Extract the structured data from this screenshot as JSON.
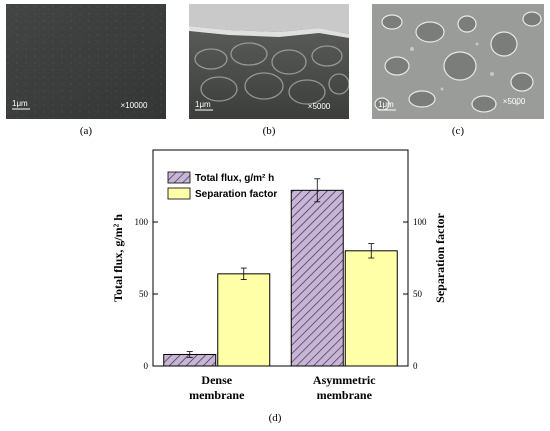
{
  "panels": [
    {
      "caption": "(a)",
      "scale_label": "1μm",
      "magnification": "×10000",
      "description": "dense membrane surface"
    },
    {
      "caption": "(b)",
      "scale_label": "1μm",
      "magnification": "×5000",
      "description": "asymmetric membrane cross-section"
    },
    {
      "caption": "(c)",
      "scale_label": "1μm",
      "magnification": "×5000",
      "description": "porous membrane surface"
    }
  ],
  "chart_caption": "(d)",
  "chart_data": {
    "type": "bar",
    "categories": [
      [
        "Dense",
        "membrane"
      ],
      [
        "Asymmetric",
        "membrane"
      ]
    ],
    "series": [
      {
        "name": "Total flux, g/m² h",
        "values": [
          8,
          122
        ],
        "errors": [
          2,
          8
        ],
        "axis": "left",
        "fill": "#c7b5d6",
        "pattern": "hatch"
      },
      {
        "name": "Separation factor",
        "values": [
          64,
          80
        ],
        "errors": [
          4,
          5
        ],
        "axis": "right",
        "fill": "#ffffa8",
        "pattern": "solid"
      }
    ],
    "ylabel_left": "Total flux, g/m² h",
    "ylabel_right": "Separation factor",
    "ylim_left": [
      0,
      150
    ],
    "ylim_right": [
      0,
      150
    ],
    "yticks_left": [
      0,
      50,
      100
    ],
    "yticks_right": [
      0,
      50,
      100
    ],
    "legend_position": "top-left",
    "grid": false
  }
}
